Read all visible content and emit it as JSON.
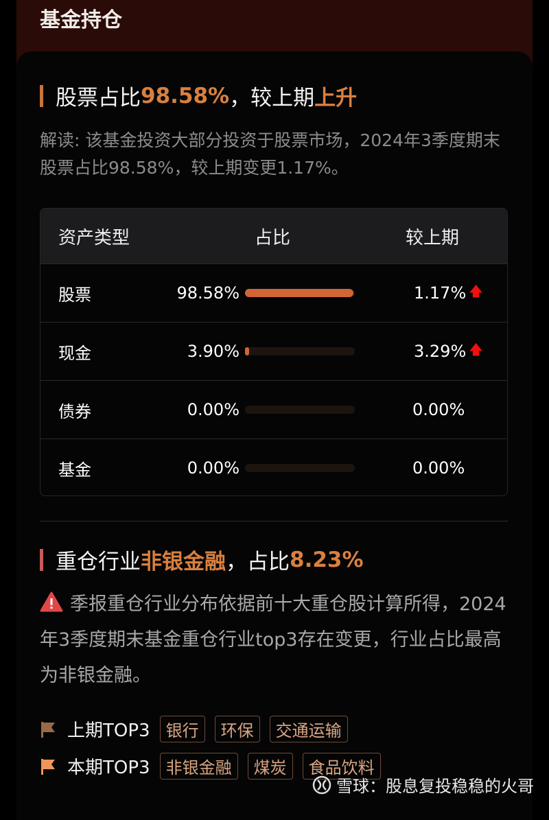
{
  "header": {
    "title": "基金持仓"
  },
  "stock_section": {
    "title_prefix": "股票占比",
    "title_value": "98.58%",
    "title_mid": "，较上期",
    "title_trend": "上升",
    "explanation": "解读: 该基金投资大部分投资于股票市场，2024年3季度期末股票占比98.58%，较上期变更1.17%。"
  },
  "asset_table": {
    "headers": [
      "资产类型",
      "占比",
      "较上期"
    ],
    "rows": [
      {
        "type": "股票",
        "ratio": "98.58%",
        "ratio_value": 98.58,
        "change": "1.17%",
        "trend": "up"
      },
      {
        "type": "现金",
        "ratio": "3.90%",
        "ratio_value": 3.9,
        "change": "3.29%",
        "trend": "up"
      },
      {
        "type": "债券",
        "ratio": "0.00%",
        "ratio_value": 0,
        "change": "0.00%",
        "trend": "none"
      },
      {
        "type": "基金",
        "ratio": "0.00%",
        "ratio_value": 0,
        "change": "0.00%",
        "trend": "none"
      }
    ],
    "arrow_icon": "arrow-up-icon",
    "up_color": "#f01010",
    "bar_color": "#d06535"
  },
  "industry_section": {
    "title_prefix": "重仓行业",
    "title_industry": "非银金融",
    "title_mid": "，占比",
    "title_value": "8.23%",
    "note": "季报重仓行业分布依据前十大重仓股计算所得，2024年3季度期末基金重仓行业top3存在变更，行业占比最高为非银金融。",
    "prev_label": "上期TOP3",
    "prev_tags": [
      "银行",
      "环保",
      "交通运输"
    ],
    "curr_label": "本期TOP3",
    "curr_tags": [
      "非银金融",
      "煤炭",
      "食品饮料"
    ]
  },
  "watermark": {
    "text": "雪球：股息复投稳稳的火哥"
  },
  "accent_color": "#d9803f"
}
